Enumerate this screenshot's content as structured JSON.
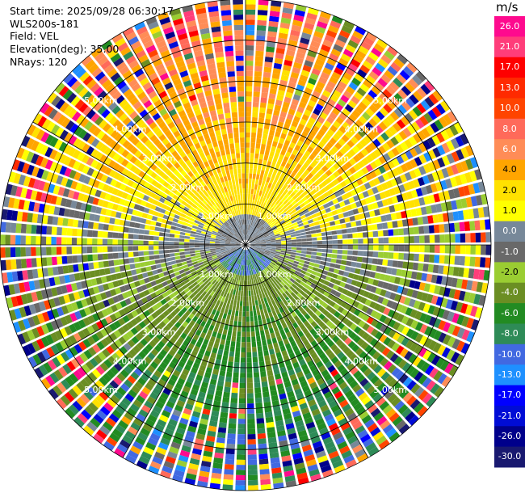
{
  "header": {
    "start_time": "Start time: 2025/09/28 06:30:17",
    "site": "WLS200s-181",
    "field": "Field: VEL",
    "elevation": "Elevation(deg): 35.00",
    "nrays": "NRays: 120"
  },
  "colorbar": {
    "unit": "m/s",
    "ticks": [
      "26.0",
      "21.0",
      "17.0",
      "13.0",
      "10.0",
      "8.0",
      "6.0",
      "4.0",
      "2.0",
      "1.0",
      "0.0",
      "-1.0",
      "-2.0",
      "-4.0",
      "-6.0",
      "-8.0",
      "-10.0",
      "-13.0",
      "-17.0",
      "-21.0",
      "-26.0",
      "-30.0"
    ],
    "colors": [
      "#fe0a8e",
      "#ff3d7a",
      "#fe0000",
      "#ff2a00",
      "#ff4400",
      "#ff6a5a",
      "#ff8c57",
      "#ffa500",
      "#ffe100",
      "#ffff00",
      "#778899",
      "#696969",
      "#9acd32",
      "#6b8e23",
      "#228b22",
      "#2e8b57",
      "#4169e1",
      "#1e90ff",
      "#0000ff",
      "#000cd6",
      "#00008b",
      "#191970"
    ]
  },
  "chart_data": {
    "type": "heatmap",
    "projection": "polar-ppi",
    "field": "VEL",
    "units": "m/s",
    "nrays": 120,
    "elevation_deg": 35.0,
    "range_max_km": 6.0,
    "range_rings_km": [
      1.0,
      2.0,
      3.0,
      4.0,
      5.0
    ],
    "range_labels": [
      "1.00km",
      "2.00km",
      "3.00km",
      "4.00km",
      "5.00km"
    ],
    "clim": [
      -30.0,
      26.0
    ],
    "pattern": "north half positive (approaching/receding), south half negative; noisy mixed values at far range"
  }
}
